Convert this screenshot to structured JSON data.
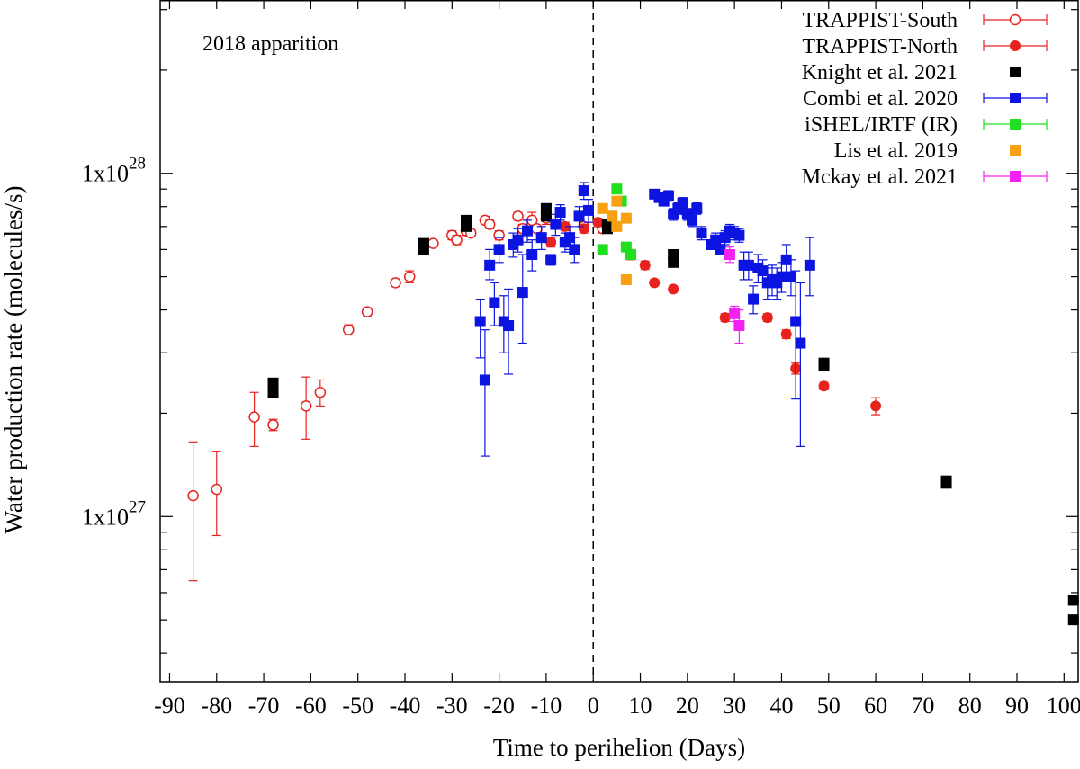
{
  "chart_data": {
    "type": "scatter",
    "annotation": "2018 apparition",
    "xlabel": "Time to perihelion (Days)",
    "ylabel": "Water production rate (molecules/s)",
    "x_range": [
      -92,
      103
    ],
    "y_range": [
      3.3e+26,
      3.2e+28
    ],
    "y_scale": "log",
    "x_ticks": [
      -90,
      -80,
      -70,
      -60,
      -50,
      -40,
      -30,
      -20,
      -10,
      0,
      10,
      20,
      30,
      40,
      50,
      60,
      70,
      80,
      90,
      100
    ],
    "x_tick_labels": [
      "-90",
      "-80",
      "-70",
      "-60",
      "-50",
      "-40",
      "-30",
      "-20",
      "-10",
      "0",
      "10",
      "20",
      "30",
      "40",
      "50",
      "60",
      "70",
      "80",
      "90",
      "100"
    ],
    "y_major_ticks": [
      {
        "value": 1e+27,
        "base": "1x10",
        "exp": "27"
      },
      {
        "value": 1e+28,
        "base": "1x10",
        "exp": "28"
      }
    ],
    "y_minor_ticks": [
      4e+26,
      5e+26,
      6e+26,
      7e+26,
      8e+26,
      9e+26,
      2e+27,
      3e+27,
      4e+27,
      5e+27,
      6e+27,
      7e+27,
      8e+27,
      9e+27,
      2e+28,
      3e+28
    ],
    "perihelion_line_x": 0,
    "legend_position": "top-right",
    "series": [
      {
        "name": "TRAPPIST-South",
        "color": "#e8231f",
        "marker": "circle-open",
        "points": [
          [
            -85,
            1.15e+27,
            6.5e+26,
            1.65e+27
          ],
          [
            -80,
            1.2e+27,
            8.8e+26,
            1.55e+27
          ],
          [
            -72,
            1.95e+27,
            1.6e+27,
            2.3e+27
          ],
          [
            -68,
            1.85e+27,
            1.78e+27,
            1.92e+27
          ],
          [
            -61,
            2.1e+27,
            1.68e+27,
            2.55e+27
          ],
          [
            -58,
            2.3e+27,
            2.1e+27,
            2.5e+27
          ],
          [
            -52,
            3.5e+27,
            3.38e+27,
            3.62e+27
          ],
          [
            -48,
            3.95e+27,
            3.85e+27,
            4.05e+27
          ],
          [
            -42,
            4.8e+27,
            4.68e+27,
            4.92e+27
          ],
          [
            -39,
            5e+27,
            4.8e+27,
            5.2e+27
          ],
          [
            -34,
            6.25e+27,
            6.1e+27,
            6.4e+27
          ],
          [
            -30,
            6.6e+27,
            6.4e+27,
            6.8e+27
          ],
          [
            -29,
            6.4e+27,
            6.2e+27,
            6.6e+27
          ],
          [
            -27,
            6.8e+27,
            6.6e+27,
            7e+27
          ],
          [
            -26,
            6.7e+27,
            6.55e+27,
            6.85e+27
          ],
          [
            -23,
            7.3e+27,
            7.1e+27,
            7.5e+27
          ],
          [
            -22,
            7.1e+27,
            6.9e+27,
            7.3e+27
          ],
          [
            -20,
            6.6e+27,
            6.4e+27,
            6.8e+27
          ],
          [
            -16,
            7.5e+27,
            7.3e+27,
            7.7e+27
          ],
          [
            -15,
            6.9e+27,
            6.7e+27,
            7.1e+27
          ],
          [
            -13,
            7.3e+27,
            6.9e+27,
            7.7e+27
          ],
          [
            -12,
            6.9e+27,
            6.75e+27,
            7.05e+27
          ],
          [
            -10,
            7.4e+27,
            7.1e+27,
            7.7e+27
          ],
          [
            -8,
            7.1e+27,
            6.9e+27,
            7.3e+27
          ],
          [
            -2,
            7e+27,
            6.8e+27,
            7.2e+27
          ],
          [
            2,
            6.9e+27,
            6.7e+27,
            7.1e+27
          ]
        ]
      },
      {
        "name": "TRAPPIST-North",
        "color": "#e8231f",
        "marker": "circle-filled",
        "points": [
          [
            -9,
            6.3e+27,
            6.1e+27,
            6.5e+27
          ],
          [
            -6,
            7e+27,
            6.8e+27,
            7.2e+27
          ],
          [
            -2,
            6.9e+27,
            6.7e+27,
            7.1e+27
          ],
          [
            1,
            7.2e+27,
            7e+27,
            7.4e+27
          ],
          [
            8,
            5.8e+27,
            5.6e+27,
            6e+27
          ],
          [
            11,
            5.4e+27,
            5.25e+27,
            5.55e+27
          ],
          [
            13,
            4.8e+27,
            4.7e+27,
            4.9e+27
          ],
          [
            17,
            4.6e+27,
            4.5e+27,
            4.7e+27
          ],
          [
            28,
            3.8e+27,
            3.7e+27,
            3.9e+27
          ],
          [
            37,
            3.8e+27,
            3.7e+27,
            3.9e+27
          ],
          [
            41,
            3.4e+27,
            3.3e+27,
            3.5e+27
          ],
          [
            43,
            2.7e+27,
            2.6e+27,
            2.8e+27
          ],
          [
            49,
            2.4e+27,
            2.34e+27,
            2.46e+27
          ],
          [
            60,
            2.1e+27,
            1.98e+27,
            2.22e+27
          ]
        ]
      },
      {
        "name": "Knight et al. 2021",
        "color": "#000000",
        "marker": "square-filled",
        "points": [
          [
            -68,
            2.3e+27
          ],
          [
            -68,
            2.45e+27
          ],
          [
            -36,
            6e+27
          ],
          [
            -36,
            6.25e+27
          ],
          [
            -27,
            7e+27
          ],
          [
            -27,
            7.3e+27
          ],
          [
            -10,
            7.5e+27
          ],
          [
            -10,
            7.9e+27
          ],
          [
            3,
            6.9e+27
          ],
          [
            3,
            7.1e+27
          ],
          [
            17,
            5.5e+27
          ],
          [
            17,
            5.8e+27
          ],
          [
            49,
            2.75e+27
          ],
          [
            49,
            2.8e+27
          ],
          [
            75,
            1.25e+27
          ],
          [
            75,
            1.27e+27
          ],
          [
            102,
            5.7e+26
          ],
          [
            102,
            5e+26
          ]
        ]
      },
      {
        "name": "Combi et al. 2020",
        "color": "#0b14e0",
        "marker": "square-filled",
        "points": [
          [
            -24,
            3.7e+27,
            2.9e+27,
            4.3e+27
          ],
          [
            -23,
            2.5e+27,
            1.5e+27,
            3.5e+27
          ],
          [
            -22,
            5.4e+27,
            4.9e+27,
            6e+27
          ],
          [
            -21,
            4.2e+27,
            3.6e+27,
            4.8e+27
          ],
          [
            -20,
            6e+27,
            5.5e+27,
            6.5e+27
          ],
          [
            -19,
            3.7e+27,
            3e+27,
            4.4e+27
          ],
          [
            -18,
            3.6e+27,
            2.6e+27,
            4.6e+27
          ],
          [
            -17,
            6.2e+27,
            5.7e+27,
            6.7e+27
          ],
          [
            -16,
            6.4e+27,
            5.9e+27,
            6.9e+27
          ],
          [
            -15,
            4.5e+27,
            3.2e+27,
            5.8e+27
          ],
          [
            -14,
            6.8e+27,
            6.3e+27,
            7.3e+27
          ],
          [
            -13,
            5.8e+27,
            5.2e+27,
            6.4e+27
          ],
          [
            -11,
            6.5e+27,
            6e+27,
            7e+27
          ],
          [
            -9,
            5.6e+27,
            5.4e+27,
            5.8e+27
          ],
          [
            -8,
            7.1e+27,
            6.6e+27,
            7.6e+27
          ],
          [
            -7,
            7.7e+27,
            7.3e+27,
            8.1e+27
          ],
          [
            -6,
            6.3e+27,
            5.9e+27,
            6.7e+27
          ],
          [
            -5,
            6.5e+27,
            6e+27,
            7e+27
          ],
          [
            -4,
            6e+27,
            5.5e+27,
            6.5e+27
          ],
          [
            -3,
            7.5e+27,
            7e+27,
            8e+27
          ],
          [
            -2,
            8.9e+27,
            8.4e+27,
            9.4e+27
          ],
          [
            -1,
            7.8e+27,
            7.2e+27,
            8.4e+27
          ],
          [
            13,
            8.7e+27,
            8.5e+27,
            8.9e+27
          ],
          [
            14,
            8.5e+27,
            8.3e+27,
            8.7e+27
          ],
          [
            15,
            8.3e+27,
            8.1e+27,
            8.5e+27
          ],
          [
            16,
            8.6e+27,
            8.3e+27,
            8.9e+27
          ],
          [
            17,
            7.6e+27,
            7.3e+27,
            7.9e+27
          ],
          [
            18,
            7.9e+27,
            7.6e+27,
            8.2e+27
          ],
          [
            19,
            8.2e+27,
            7.9e+27,
            8.5e+27
          ],
          [
            20,
            7.6e+27,
            7.3e+27,
            7.9e+27
          ],
          [
            21,
            7.3e+27,
            7e+27,
            7.6e+27
          ],
          [
            22,
            7.9e+27,
            7.6e+27,
            8.2e+27
          ],
          [
            23,
            6.7e+27,
            6.4e+27,
            7e+27
          ],
          [
            25,
            6.2e+27,
            6e+27,
            6.4e+27
          ],
          [
            26,
            6.4e+27,
            6.1e+27,
            6.7e+27
          ],
          [
            27,
            6e+27,
            5.8e+27,
            6.2e+27
          ],
          [
            28,
            6.5e+27,
            6.2e+27,
            6.8e+27
          ],
          [
            29,
            6.8e+27,
            6.5e+27,
            7.1e+27
          ],
          [
            30,
            6.7e+27,
            6.4e+27,
            7e+27
          ],
          [
            31,
            6.6e+27,
            6.3e+27,
            6.9e+27
          ],
          [
            32,
            5.4e+27,
            4.9e+27,
            5.9e+27
          ],
          [
            33,
            5.4e+27,
            4.9e+27,
            5.9e+27
          ],
          [
            34,
            4.3e+27,
            3.9e+27,
            4.7e+27
          ],
          [
            35,
            5.3e+27,
            4.8e+27,
            5.8e+27
          ],
          [
            36,
            5.2e+27,
            4.8e+27,
            5.6e+27
          ],
          [
            37,
            4.8e+27,
            4.3e+27,
            5.3e+27
          ],
          [
            38,
            4.9e+27,
            4.4e+27,
            5.4e+27
          ],
          [
            39,
            4.8e+27,
            4.3e+27,
            5.3e+27
          ],
          [
            40,
            5e+27,
            4.5e+27,
            5.5e+27
          ],
          [
            41,
            5.6e+27,
            5e+27,
            6.2e+27
          ],
          [
            42,
            5e+27,
            4.4e+27,
            5.6e+27
          ],
          [
            43,
            3.7e+27,
            2.2e+27,
            5.2e+27
          ],
          [
            44,
            3.2e+27,
            1.6e+27,
            4.8e+27
          ],
          [
            46,
            5.4e+27,
            4.4e+27,
            6.5e+27
          ]
        ]
      },
      {
        "name": "iSHEL/IRTF (IR)",
        "color": "#1ee01e",
        "marker": "square-filled",
        "points": [
          [
            2,
            6e+27,
            5.9e+27,
            6.1e+27
          ],
          [
            4,
            7.5e+27,
            7.4e+27,
            7.6e+27
          ],
          [
            5,
            9e+27,
            8.9e+27,
            9.1e+27
          ],
          [
            6,
            8.3e+27,
            8.2e+27,
            8.4e+27
          ],
          [
            7,
            6.1e+27,
            6e+27,
            6.2e+27
          ],
          [
            8,
            5.8e+27,
            5.7e+27,
            5.9e+27
          ]
        ]
      },
      {
        "name": "Lis et al. 2019",
        "color": "#f7a011",
        "marker": "square-filled",
        "points": [
          [
            2,
            7.9e+27
          ],
          [
            4,
            7.5e+27
          ],
          [
            5,
            8.3e+27
          ],
          [
            5,
            7e+27
          ],
          [
            7,
            7.4e+27
          ],
          [
            7,
            4.9e+27
          ]
        ]
      },
      {
        "name": "Mckay et al. 2021",
        "color": "#f222f0",
        "marker": "square-filled",
        "points": [
          [
            29,
            5.8e+27,
            5.5e+27,
            6.1e+27
          ],
          [
            30,
            3.9e+27,
            3.7e+27,
            4.1e+27
          ],
          [
            31,
            3.6e+27,
            3.2e+27,
            4e+27
          ]
        ]
      }
    ]
  }
}
